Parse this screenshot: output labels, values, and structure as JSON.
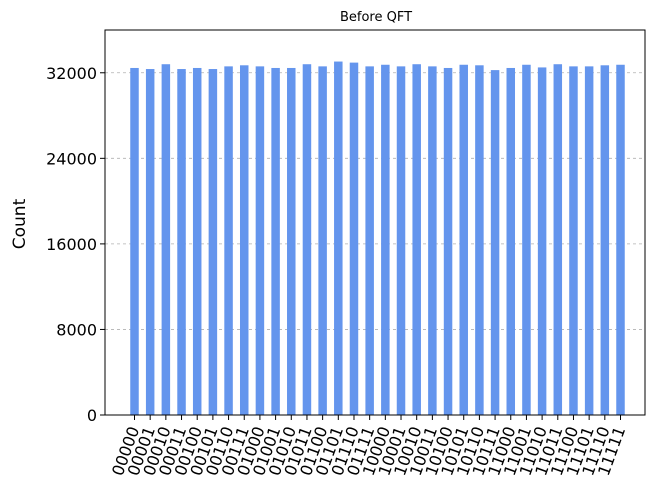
{
  "chart_data": {
    "type": "bar",
    "title": "Before QFT",
    "xlabel": "",
    "ylabel": "Count",
    "ylim": [
      0,
      36000
    ],
    "yticks": [
      0,
      8000,
      16000,
      24000,
      32000
    ],
    "ytick_labels": [
      "0",
      "8000",
      "16000",
      "24000",
      "32000"
    ],
    "grid": "y-dashed",
    "bar_color": "#6495ED",
    "categories": [
      "00000",
      "00001",
      "00010",
      "00011",
      "00100",
      "00101",
      "00110",
      "00111",
      "01000",
      "01001",
      "01010",
      "01011",
      "01100",
      "01101",
      "01110",
      "01111",
      "10000",
      "10001",
      "10010",
      "10011",
      "10100",
      "10101",
      "10110",
      "10111",
      "11000",
      "11001",
      "11010",
      "11011",
      "11100",
      "11101",
      "11110",
      "11111"
    ],
    "values": [
      32450,
      32350,
      32800,
      32350,
      32450,
      32350,
      32600,
      32700,
      32600,
      32450,
      32450,
      32800,
      32600,
      33050,
      32950,
      32600,
      32750,
      32600,
      32800,
      32600,
      32450,
      32750,
      32700,
      32250,
      32450,
      32750,
      32500,
      32800,
      32600,
      32600,
      32700,
      32750
    ]
  }
}
